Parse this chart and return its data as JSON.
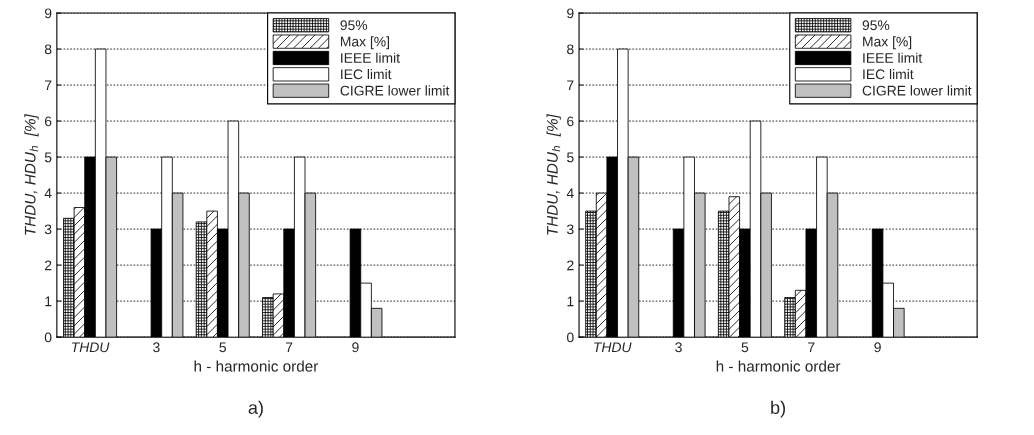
{
  "chart_data": [
    {
      "type": "bar",
      "categories": [
        "THDU",
        "3",
        "5",
        "7",
        "9",
        null
      ],
      "xlabel": "h - harmonic order",
      "ylabel": "THDU, HDU$_{h}$  [%]",
      "ylim": [
        0,
        9
      ],
      "yticks": [
        0,
        1,
        2,
        3,
        4,
        5,
        6,
        7,
        8,
        9
      ],
      "grid": "y",
      "legend": "top right",
      "annotations": [
        "a)"
      ],
      "series": [
        {
          "name": "95%",
          "color": "#000000",
          "values": [
            3.3,
            null,
            3.2,
            1.1,
            null,
            null
          ]
        },
        {
          "name": "Max [%]",
          "color": "#000000",
          "values": [
            3.6,
            null,
            3.5,
            1.2,
            null,
            null
          ]
        },
        {
          "name": "IEEE limit",
          "color": "#000000",
          "values": [
            5,
            3,
            3,
            3,
            3,
            null
          ]
        },
        {
          "name": "IEC limit",
          "color": "#ffffff",
          "values": [
            8,
            5,
            6,
            5,
            1.5,
            null
          ]
        },
        {
          "name": "CIGRE lower limit",
          "color": "#c0c0c0",
          "values": [
            5,
            4,
            4,
            4,
            0.8,
            null
          ]
        }
      ]
    },
    {
      "type": "bar",
      "categories": [
        "THDU",
        "3",
        "5",
        "7",
        "9",
        null
      ],
      "xlabel": "h - harmonic order",
      "ylabel": "THDU, HDU$_{h}$  [%]",
      "ylim": [
        0,
        9
      ],
      "yticks": [
        0,
        1,
        2,
        3,
        4,
        5,
        6,
        7,
        8,
        9
      ],
      "grid": "y",
      "legend": "top right",
      "annotations": [
        "b)"
      ],
      "series": [
        {
          "name": "95%",
          "color": "#000000",
          "values": [
            3.5,
            null,
            3.5,
            1.1,
            null,
            null
          ]
        },
        {
          "name": "Max [%]",
          "color": "#000000",
          "values": [
            4.0,
            null,
            3.9,
            1.3,
            null,
            null
          ]
        },
        {
          "name": "IEEE limit",
          "color": "#000000",
          "values": [
            5,
            3,
            3,
            3,
            3,
            null
          ]
        },
        {
          "name": "IEC limit",
          "color": "#ffffff",
          "values": [
            8,
            5,
            6,
            5,
            1.5,
            null
          ]
        },
        {
          "name": "CIGRE lower limit",
          "color": "#c0c0c0",
          "values": [
            5,
            4,
            4,
            4,
            0.8,
            null
          ]
        }
      ]
    }
  ]
}
